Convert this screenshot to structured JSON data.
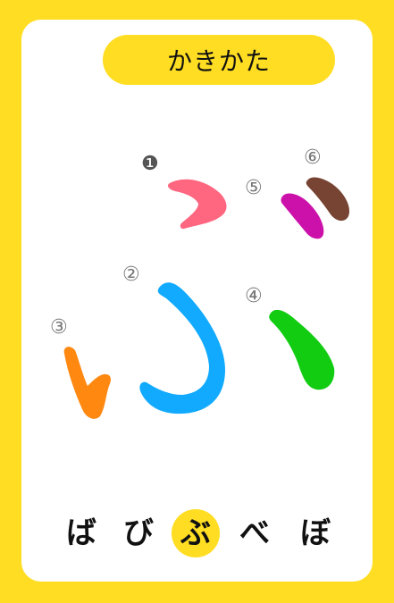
{
  "title": "かきかた",
  "strokes": [
    {
      "label": "❶",
      "color": "#FF6680",
      "label_color": "#555555"
    },
    {
      "label": "②",
      "color": "#11AAFF",
      "label_color": "#777777"
    },
    {
      "label": "③",
      "color": "#FF8811",
      "label_color": "#777777"
    },
    {
      "label": "④",
      "color": "#11CC11",
      "label_color": "#777777"
    },
    {
      "label": "⑤",
      "color": "#CC11AA",
      "label_color": "#777777"
    },
    {
      "label": "⑥",
      "color": "#774433",
      "label_color": "#777777"
    }
  ],
  "kana_row": [
    "ば",
    "び",
    "ぶ",
    "べ",
    "ぼ"
  ],
  "active_index": 2,
  "colors": {
    "frame": "#FFDD22",
    "panel": "#FFFFFF"
  }
}
